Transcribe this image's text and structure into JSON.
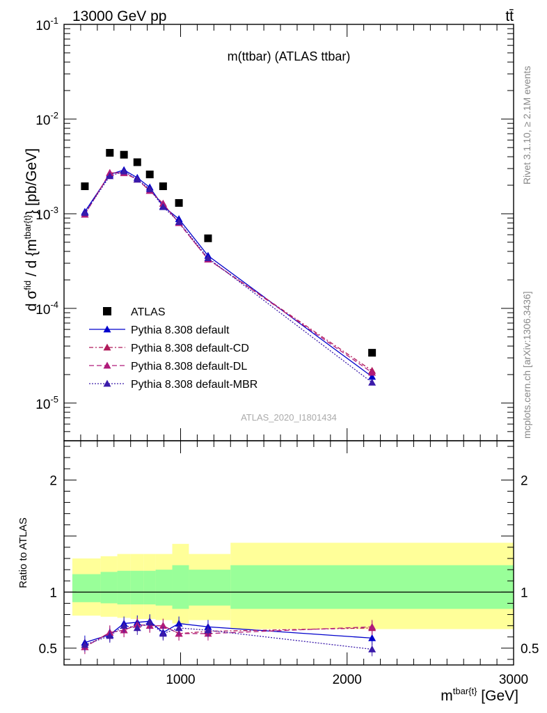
{
  "header": {
    "energy_label": "13000 GeV pp",
    "process_label": "tt̄",
    "plot_title": "m(ttbar) (ATLAS ttbar)",
    "analysis_id": "ATLAS_2020_I1801434",
    "rivet_label": "Rivet 3.1.10, ≥ 2.1M events",
    "mcplots_label": "mcplots.cern.ch [arXiv:1306.3436]"
  },
  "colors": {
    "data": "#000000",
    "default": "#0000cc",
    "cd": "#b01a5a",
    "dl": "#b01a7a",
    "mbr": "#3a1aaa",
    "band_outer": "#ffff99",
    "band_inner": "#99ff99"
  },
  "chart_data": [
    {
      "type": "scatter",
      "yscale": "log",
      "ylabel": "d σ^fid / d {m^tbar{t}} [pb/GeV]",
      "xlim": [
        300,
        3000
      ],
      "ylim": [
        4e-06,
        0.1
      ],
      "yticks": [
        {
          "value": 0.1,
          "label": "10",
          "exp": "-1"
        },
        {
          "value": 0.01,
          "label": "10",
          "exp": "-2"
        },
        {
          "value": 0.001,
          "label": "10",
          "exp": "-3"
        },
        {
          "value": 0.0001,
          "label": "10",
          "exp": "-4"
        },
        {
          "value": 1e-05,
          "label": "10",
          "exp": "-5"
        }
      ],
      "x": [
        425,
        575,
        660,
        740,
        815,
        895,
        990,
        1165,
        2150
      ],
      "series": [
        {
          "name": "ATLAS",
          "key": "data",
          "values": [
            0.00195,
            0.0044,
            0.0042,
            0.0035,
            0.0026,
            0.00195,
            0.0013,
            0.00055,
            3.4e-05
          ]
        },
        {
          "name": "Pythia 8.308 default",
          "key": "default",
          "values": [
            0.00105,
            0.0026,
            0.0029,
            0.0024,
            0.0019,
            0.0012,
            0.00088,
            0.00036,
            1.9e-05
          ]
        },
        {
          "name": "Pythia 8.308 default-CD",
          "key": "cd",
          "values": [
            0.00098,
            0.0027,
            0.0027,
            0.0023,
            0.00175,
            0.00128,
            0.0008,
            0.00033,
            2.2e-05
          ]
        },
        {
          "name": "Pythia 8.308 default-DL",
          "key": "dl",
          "values": [
            0.00098,
            0.0027,
            0.0027,
            0.0023,
            0.00175,
            0.00128,
            0.0008,
            0.00033,
            2.1e-05
          ]
        },
        {
          "name": "Pythia 8.308 default-MBR",
          "key": "mbr",
          "values": [
            0.00102,
            0.0025,
            0.0028,
            0.0023,
            0.00182,
            0.00118,
            0.00082,
            0.00034,
            1.65e-05
          ]
        }
      ]
    },
    {
      "type": "line",
      "ylabel": "Ratio to ATLAS",
      "xlabel": "m^tbar{t} [GeV]",
      "xlim": [
        300,
        3000
      ],
      "ylim": [
        0.35,
        2.35
      ],
      "xticks": [
        1000,
        2000,
        3000
      ],
      "yticks": [
        0.5,
        1,
        2
      ],
      "x": [
        425,
        575,
        660,
        740,
        815,
        895,
        990,
        1165,
        2150
      ],
      "bands": {
        "edges": [
          350,
          520,
          620,
          700,
          780,
          850,
          950,
          1050,
          1300,
          3000
        ],
        "inner_low": [
          0.91,
          0.9,
          0.89,
          0.89,
          0.89,
          0.88,
          0.85,
          0.88,
          0.85
        ],
        "inner_high": [
          1.16,
          1.18,
          1.19,
          1.19,
          1.19,
          1.2,
          1.24,
          1.2,
          1.24
        ],
        "outer_low": [
          0.79,
          0.78,
          0.77,
          0.76,
          0.76,
          0.75,
          0.72,
          0.75,
          0.67
        ],
        "outer_high": [
          1.3,
          1.32,
          1.34,
          1.34,
          1.34,
          1.34,
          1.43,
          1.34,
          1.44
        ]
      },
      "series": [
        {
          "name": "Pythia 8.308 default",
          "key": "default",
          "values": [
            0.55,
            0.62,
            0.72,
            0.73,
            0.74,
            0.64,
            0.72,
            0.69,
            0.59
          ]
        },
        {
          "name": "Pythia 8.308 default-CD",
          "key": "cd",
          "values": [
            0.51,
            0.64,
            0.66,
            0.71,
            0.7,
            0.7,
            0.63,
            0.65,
            0.68
          ]
        },
        {
          "name": "Pythia 8.308 default-DL",
          "key": "dl",
          "values": [
            0.51,
            0.64,
            0.66,
            0.71,
            0.7,
            0.7,
            0.63,
            0.63,
            0.69
          ]
        },
        {
          "name": "Pythia 8.308 default-MBR",
          "key": "mbr",
          "values": [
            0.53,
            0.61,
            0.7,
            0.68,
            0.73,
            0.63,
            0.68,
            0.66,
            0.49
          ]
        }
      ]
    }
  ]
}
